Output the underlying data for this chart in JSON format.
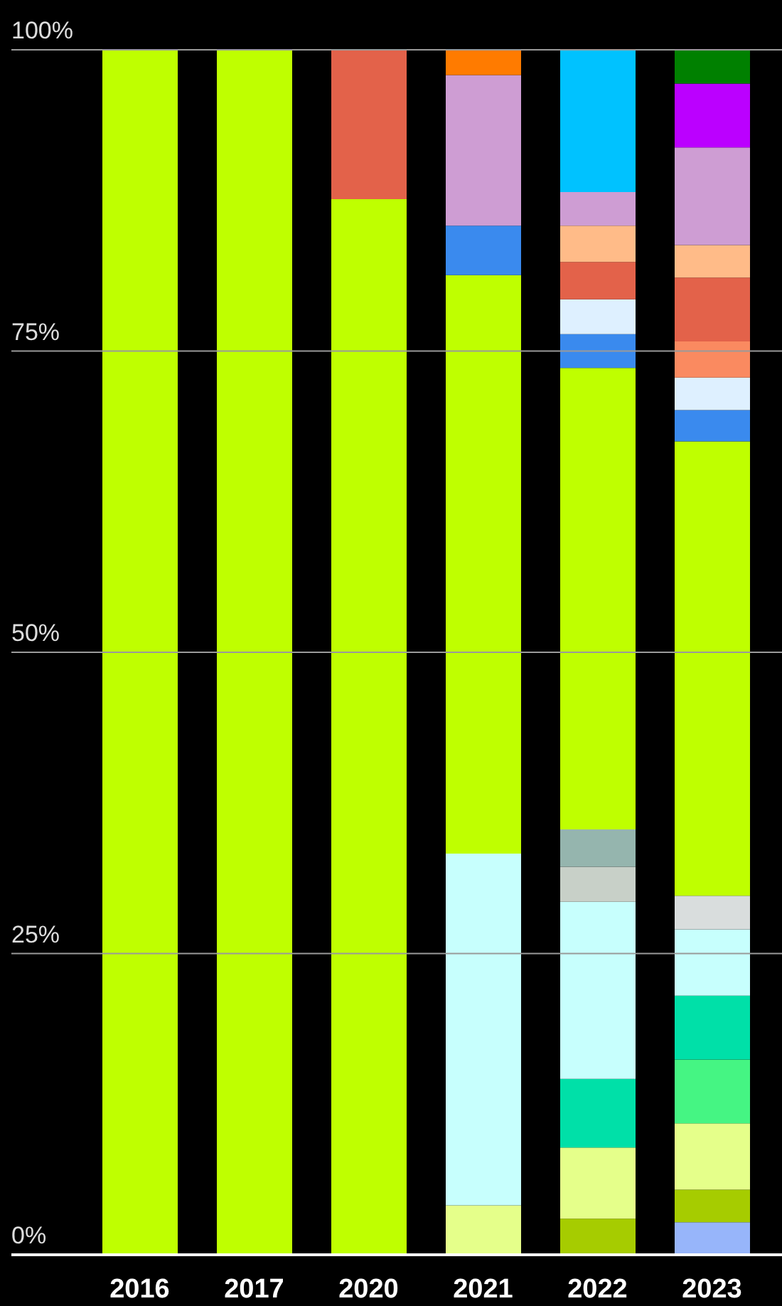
{
  "chart_data": {
    "type": "bar",
    "stacked": true,
    "categories": [
      "2016",
      "2017",
      "2020",
      "2021",
      "2022",
      "2023"
    ],
    "ylim": [
      0,
      100
    ],
    "yticks": [
      {
        "value": 0,
        "label": "0%"
      },
      {
        "value": 25,
        "label": "25%"
      },
      {
        "value": 50,
        "label": "50%"
      },
      {
        "value": 75,
        "label": "75%"
      },
      {
        "value": 100,
        "label": "100%"
      }
    ],
    "grid": "y",
    "legend": false,
    "series": [
      {
        "color": "#97b5fa",
        "values": [
          null,
          null,
          null,
          null,
          null,
          2.7
        ]
      },
      {
        "color": "#a6cc00",
        "values": [
          null,
          null,
          null,
          null,
          3.0,
          2.7
        ]
      },
      {
        "color": "#e5ff8a",
        "values": [
          null,
          null,
          null,
          4.1,
          5.9,
          5.5
        ]
      },
      {
        "color": "#45f583",
        "values": [
          null,
          null,
          null,
          null,
          null,
          5.3
        ]
      },
      {
        "color": "#00e0a8",
        "values": [
          null,
          null,
          null,
          null,
          5.7,
          5.3
        ]
      },
      {
        "color": "#c7fffd",
        "values": [
          null,
          null,
          null,
          29.2,
          14.7,
          5.5
        ]
      },
      {
        "color": "#c8d0c8",
        "values": [
          null,
          null,
          null,
          null,
          2.9,
          null
        ]
      },
      {
        "color": "#95b5ae",
        "values": [
          null,
          null,
          null,
          null,
          3.1,
          null
        ]
      },
      {
        "color": "#d9dddd",
        "values": [
          null,
          null,
          null,
          null,
          null,
          2.8
        ]
      },
      {
        "color": "#bfff00",
        "values": [
          100,
          100,
          87.6,
          48.0,
          38.3,
          37.7
        ]
      },
      {
        "color": "#3a8aee",
        "values": [
          null,
          null,
          null,
          4.1,
          2.8,
          2.6
        ]
      },
      {
        "color": "#def0ff",
        "values": [
          null,
          null,
          null,
          null,
          2.9,
          2.7
        ]
      },
      {
        "color": "#fa8a60",
        "values": [
          null,
          null,
          null,
          null,
          null,
          3.0
        ]
      },
      {
        "color": "#e3624a",
        "values": [
          null,
          null,
          12.4,
          null,
          3.1,
          5.3
        ]
      },
      {
        "color": "#ffbb88",
        "values": [
          null,
          null,
          null,
          null,
          3.0,
          2.7
        ]
      },
      {
        "color": "#ce9dd3",
        "values": [
          null,
          null,
          null,
          12.5,
          2.8,
          8.1
        ]
      },
      {
        "color": "#00c2ff",
        "values": [
          null,
          null,
          null,
          null,
          11.8,
          null
        ]
      },
      {
        "color": "#bb00ff",
        "values": [
          null,
          null,
          null,
          null,
          null,
          5.3
        ]
      },
      {
        "color": "#ff7b00",
        "values": [
          null,
          null,
          null,
          2.1,
          null,
          null
        ]
      },
      {
        "color": "#008000",
        "values": [
          null,
          null,
          null,
          null,
          null,
          2.8
        ]
      }
    ]
  }
}
